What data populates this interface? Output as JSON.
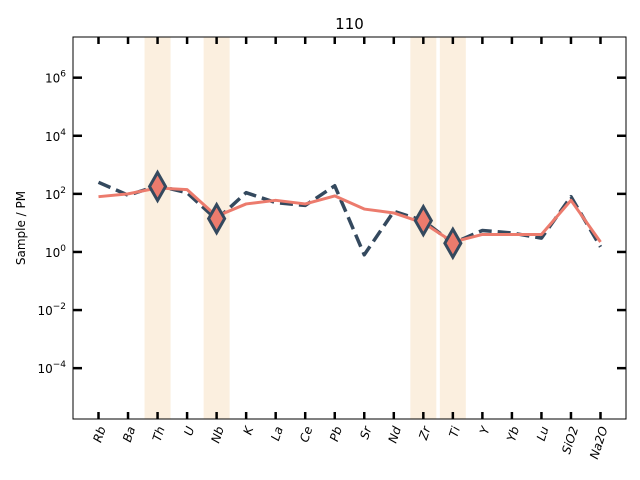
{
  "chart_data": {
    "type": "line",
    "title": "110",
    "xlabel": "",
    "ylabel": "Sample / PM",
    "yscale": "log",
    "ylim_exp": [
      -5.75,
      7.4
    ],
    "y_tick_exponents": [
      -4,
      -2,
      0,
      2,
      4,
      6
    ],
    "categories": [
      "Rb",
      "Ba",
      "Th",
      "U",
      "Nb",
      "K",
      "La",
      "Ce",
      "Pb",
      "Sr",
      "Nd",
      "Zr",
      "Ti",
      "Y",
      "Yb",
      "Lu",
      "SiO2",
      "Na2O"
    ],
    "highlighted_categories": [
      "Th",
      "Nb",
      "Zr",
      "Ti"
    ],
    "series": [
      {
        "style": "dashed",
        "color": "#34495e",
        "values": [
          250,
          90,
          190,
          110,
          13,
          110,
          50,
          40,
          190,
          0.8,
          25,
          12,
          2,
          5.5,
          4.5,
          3,
          80,
          1.5
        ]
      },
      {
        "style": "solid",
        "color": "#ec7b6d",
        "values": [
          80,
          100,
          160,
          140,
          17,
          45,
          60,
          45,
          85,
          30,
          22,
          10,
          2.2,
          4,
          4,
          4,
          60,
          2.2
        ]
      }
    ],
    "markers": {
      "shape": "diamond",
      "fill": "#ec7b6d",
      "edge": "#34495e",
      "points": [
        {
          "category": "Th",
          "value": 180
        },
        {
          "category": "Nb",
          "value": 14
        },
        {
          "category": "Zr",
          "value": 12
        },
        {
          "category": "Ti",
          "value": 2
        }
      ]
    },
    "highlight_color": "#f9ead4",
    "grid": false
  }
}
